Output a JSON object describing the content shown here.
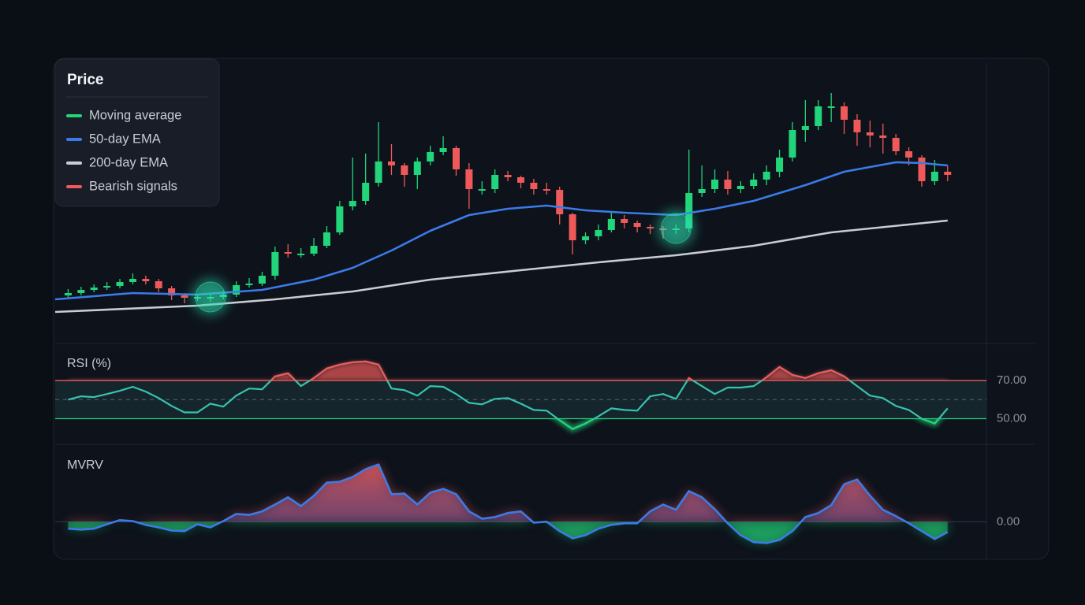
{
  "chart_data": [
    {
      "type": "candlestick",
      "title": "Price",
      "xlim": [
        -1,
        71
      ],
      "ylim": [
        0,
        360
      ],
      "open": [
        60,
        63,
        67,
        70,
        72,
        77,
        81,
        78,
        69,
        60,
        57,
        58,
        58,
        61,
        73,
        75,
        85,
        115,
        113,
        113,
        123,
        140,
        173,
        180,
        203,
        230,
        225,
        213,
        230,
        242,
        247,
        220,
        195,
        195,
        213,
        210,
        203,
        195,
        194,
        163,
        130,
        135,
        143,
        157,
        152,
        147,
        145,
        143,
        145,
        190,
        195,
        207,
        195,
        199,
        207,
        217,
        235,
        270,
        275,
        300,
        300,
        283,
        267,
        263,
        260,
        243,
        235,
        205,
        217
      ],
      "high": [
        68,
        71,
        74,
        77,
        81,
        88,
        85,
        81,
        72,
        63,
        62,
        63,
        66,
        78,
        82,
        90,
        122,
        125,
        120,
        133,
        148,
        180,
        235,
        240,
        280,
        252,
        228,
        235,
        250,
        262,
        250,
        228,
        205,
        220,
        218,
        212,
        208,
        203,
        198,
        165,
        140,
        150,
        165,
        162,
        155,
        150,
        148,
        150,
        245,
        225,
        220,
        218,
        205,
        215,
        225,
        245,
        280,
        308,
        308,
        317,
        305,
        290,
        282,
        278,
        265,
        248,
        238,
        232,
        225
      ],
      "low": [
        57,
        60,
        64,
        67,
        69,
        74,
        74,
        64,
        54,
        50,
        53,
        52,
        55,
        58,
        70,
        72,
        80,
        108,
        108,
        110,
        120,
        137,
        168,
        175,
        198,
        213,
        198,
        195,
        225,
        238,
        212,
        170,
        188,
        190,
        205,
        196,
        188,
        188,
        150,
        112,
        125,
        130,
        140,
        145,
        140,
        138,
        132,
        138,
        140,
        185,
        190,
        188,
        190,
        195,
        200,
        210,
        230,
        255,
        270,
        280,
        265,
        250,
        248,
        240,
        238,
        225,
        198,
        200,
        205
      ],
      "close": [
        63,
        67,
        70,
        72,
        77,
        81,
        78,
        69,
        60,
        57,
        58,
        58,
        61,
        73,
        75,
        85,
        115,
        113,
        113,
        123,
        140,
        173,
        180,
        203,
        230,
        225,
        213,
        230,
        242,
        247,
        220,
        195,
        195,
        213,
        210,
        203,
        195,
        194,
        163,
        130,
        135,
        143,
        157,
        152,
        147,
        145,
        143,
        145,
        190,
        195,
        207,
        195,
        199,
        207,
        217,
        235,
        270,
        275,
        300,
        300,
        283,
        267,
        263,
        260,
        243,
        235,
        205,
        217,
        213
      ],
      "series": [
        {
          "name": "Moving average",
          "color": "#22d47a"
        },
        {
          "name": "50-day EMA",
          "color": "#3b7be8",
          "x": [
            -1,
            5,
            10,
            15,
            19,
            22,
            25,
            28,
            31,
            34,
            37,
            40,
            43,
            47,
            50,
            53,
            57,
            60,
            64,
            66,
            68
          ],
          "values": [
            55,
            63,
            61,
            67,
            80,
            95,
            117,
            142,
            162,
            170,
            174,
            168,
            165,
            162,
            170,
            180,
            200,
            217,
            229,
            228,
            225
          ]
        },
        {
          "name": "200-day EMA",
          "color": "#c9ccd2",
          "x": [
            -1,
            10,
            16,
            22,
            28,
            35,
            41,
            47,
            53,
            59,
            65,
            68
          ],
          "values": [
            39,
            47,
            55,
            65,
            80,
            92,
            102,
            111,
            123,
            140,
            150,
            155
          ]
        },
        {
          "name": "Bearish signals",
          "color": "#ee5a5a"
        }
      ],
      "highlights": [
        11,
        47
      ],
      "highlight_color": "#2ee0b0"
    },
    {
      "type": "line",
      "title": "RSI (%)",
      "xlim": [
        -1,
        71
      ],
      "ylim": [
        37,
        89
      ],
      "yticks": [
        {
          "value": 50,
          "label": "50.00"
        },
        {
          "value": 70,
          "label": "70.00"
        }
      ],
      "midline": 60,
      "color": "#38c2b0",
      "upper_color": "#ee5a5a",
      "lower_color": "#22d47a",
      "values": [
        60.0,
        61.7,
        61.3,
        62.9,
        64.6,
        66.7,
        64.2,
        60.8,
        56.7,
        53.3,
        53.3,
        57.9,
        56.3,
        62.1,
        65.8,
        65.4,
        72.1,
        73.8,
        67.1,
        71.3,
        76.3,
        78.3,
        79.6,
        80.0,
        78.3,
        65.8,
        65.0,
        62.1,
        67.1,
        66.7,
        62.9,
        58.3,
        57.5,
        60.4,
        60.8,
        57.9,
        54.6,
        54.2,
        49.2,
        44.6,
        47.5,
        51.3,
        55.4,
        54.6,
        54.2,
        61.7,
        62.9,
        60.4,
        71.3,
        67.1,
        62.9,
        66.3,
        66.3,
        67.1,
        71.7,
        77.1,
        72.9,
        71.3,
        73.8,
        75.4,
        72.1,
        67.1,
        62.1,
        60.8,
        56.7,
        54.6,
        50.0,
        47.5,
        55.4
      ]
    },
    {
      "type": "area",
      "title": "MVRV",
      "xlim": [
        -1,
        71
      ],
      "ylim": [
        -1.2,
        2.45
      ],
      "yticks": [
        {
          "value": 0,
          "label": "0.00"
        }
      ],
      "color": "#3b7be8",
      "upper_color": "#ee5a5a",
      "lower_color": "#22d47a",
      "values": [
        -0.22,
        -0.25,
        -0.22,
        -0.08,
        0.05,
        0.02,
        -0.1,
        -0.18,
        -0.28,
        -0.3,
        -0.08,
        -0.18,
        0.02,
        0.25,
        0.22,
        0.33,
        0.55,
        0.78,
        0.5,
        0.83,
        1.25,
        1.28,
        1.43,
        1.68,
        1.83,
        0.88,
        0.9,
        0.55,
        0.93,
        1.05,
        0.88,
        0.33,
        0.1,
        0.15,
        0.28,
        0.33,
        -0.03,
        0.0,
        -0.3,
        -0.53,
        -0.43,
        -0.22,
        -0.1,
        -0.05,
        -0.05,
        0.33,
        0.55,
        0.38,
        0.98,
        0.78,
        0.4,
        -0.05,
        -0.43,
        -0.65,
        -0.68,
        -0.58,
        -0.3,
        0.15,
        0.28,
        0.53,
        1.2,
        1.35,
        0.83,
        0.38,
        0.18,
        -0.05,
        -0.3,
        -0.55,
        -0.33
      ]
    }
  ]
}
